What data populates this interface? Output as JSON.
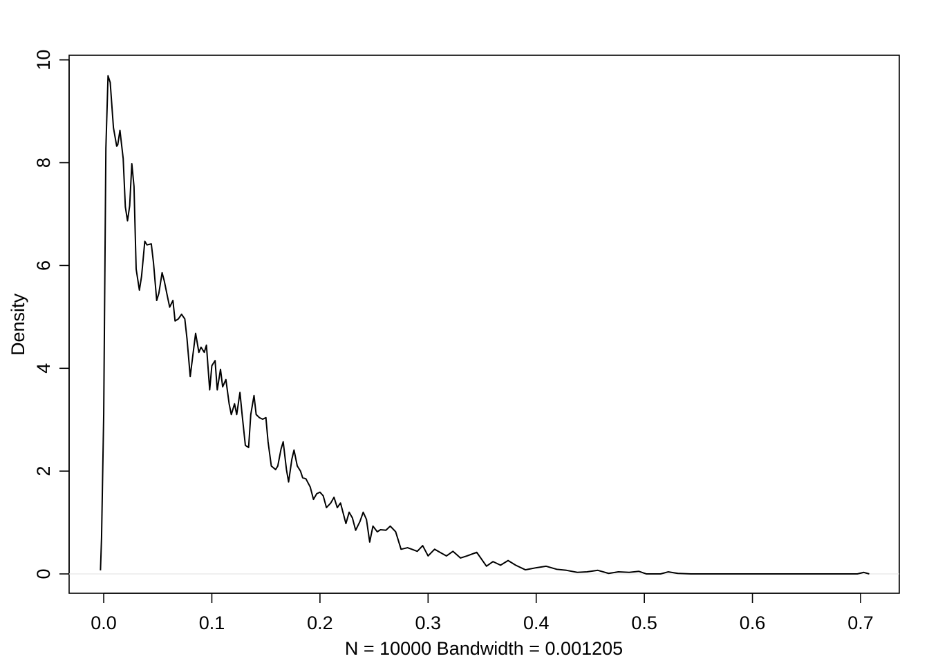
{
  "chart_data": {
    "type": "line",
    "x_label": "N = 10000   Bandwidth = 0.001205",
    "y_label": "Density",
    "series": [
      {
        "name": "density",
        "color": "#000000",
        "x": [
          -0.003,
          -0.002,
          0.0,
          0.002,
          0.004,
          0.006,
          0.009,
          0.012,
          0.013,
          0.015,
          0.018,
          0.02,
          0.022,
          0.024,
          0.026,
          0.028,
          0.03,
          0.033,
          0.035,
          0.038,
          0.04,
          0.044,
          0.046,
          0.049,
          0.051,
          0.054,
          0.056,
          0.059,
          0.061,
          0.064,
          0.066,
          0.069,
          0.072,
          0.075,
          0.077,
          0.08,
          0.082,
          0.085,
          0.088,
          0.09,
          0.093,
          0.095,
          0.098,
          0.1,
          0.103,
          0.105,
          0.108,
          0.11,
          0.113,
          0.116,
          0.118,
          0.121,
          0.123,
          0.126,
          0.128,
          0.131,
          0.134,
          0.136,
          0.139,
          0.141,
          0.144,
          0.147,
          0.15,
          0.152,
          0.155,
          0.159,
          0.161,
          0.164,
          0.166,
          0.169,
          0.171,
          0.174,
          0.176,
          0.179,
          0.182,
          0.184,
          0.187,
          0.191,
          0.194,
          0.197,
          0.2,
          0.203,
          0.206,
          0.21,
          0.213,
          0.216,
          0.219,
          0.224,
          0.227,
          0.23,
          0.233,
          0.237,
          0.24,
          0.243,
          0.246,
          0.249,
          0.253,
          0.256,
          0.261,
          0.265,
          0.27,
          0.275,
          0.281,
          0.285,
          0.29,
          0.295,
          0.3,
          0.306,
          0.311,
          0.317,
          0.323,
          0.33,
          0.336,
          0.345,
          0.354,
          0.36,
          0.367,
          0.374,
          0.381,
          0.39,
          0.4,
          0.409,
          0.419,
          0.428,
          0.438,
          0.447,
          0.457,
          0.467,
          0.476,
          0.486,
          0.495,
          0.502,
          0.515,
          0.522,
          0.531,
          0.543,
          0.607,
          0.671,
          0.697,
          0.703,
          0.708
        ],
        "values": [
          0.07,
          0.71,
          3.1,
          8.28,
          9.69,
          9.56,
          8.68,
          8.32,
          8.35,
          8.63,
          8.08,
          7.14,
          6.87,
          7.16,
          7.98,
          7.54,
          5.93,
          5.52,
          5.79,
          6.47,
          6.4,
          6.42,
          6.06,
          5.32,
          5.46,
          5.86,
          5.7,
          5.39,
          5.19,
          5.32,
          4.92,
          4.96,
          5.05,
          4.96,
          4.58,
          3.84,
          4.18,
          4.68,
          4.31,
          4.41,
          4.31,
          4.45,
          3.58,
          4.05,
          4.15,
          3.58,
          3.98,
          3.64,
          3.78,
          3.31,
          3.1,
          3.31,
          3.1,
          3.53,
          3.1,
          2.5,
          2.46,
          3.1,
          3.47,
          3.1,
          3.04,
          3.01,
          3.04,
          2.57,
          2.1,
          2.03,
          2.1,
          2.43,
          2.57,
          2.03,
          1.79,
          2.23,
          2.41,
          2.1,
          2.0,
          1.87,
          1.85,
          1.69,
          1.45,
          1.56,
          1.59,
          1.52,
          1.29,
          1.38,
          1.49,
          1.29,
          1.38,
          0.98,
          1.2,
          1.09,
          0.85,
          1.02,
          1.2,
          1.06,
          0.62,
          0.93,
          0.82,
          0.86,
          0.85,
          0.93,
          0.82,
          0.48,
          0.51,
          0.48,
          0.44,
          0.55,
          0.35,
          0.48,
          0.42,
          0.35,
          0.44,
          0.31,
          0.35,
          0.42,
          0.15,
          0.24,
          0.17,
          0.26,
          0.17,
          0.08,
          0.12,
          0.15,
          0.09,
          0.07,
          0.03,
          0.04,
          0.07,
          0.01,
          0.04,
          0.03,
          0.05,
          0.0,
          0.0,
          0.04,
          0.01,
          0.0,
          0.0,
          0.0,
          0.0,
          0.03,
          0.0
        ]
      }
    ],
    "xlim": [
      -0.032,
      0.7358
    ],
    "ylim": [
      -0.376,
      10.09
    ],
    "xticks": [
      {
        "value": 0,
        "label": "0.0"
      },
      0.1,
      0.2,
      0.3,
      0.4,
      0.5,
      0.6,
      0.7
    ],
    "yticks": [
      0,
      2,
      4,
      6,
      8,
      10
    ],
    "zero_line": true
  }
}
